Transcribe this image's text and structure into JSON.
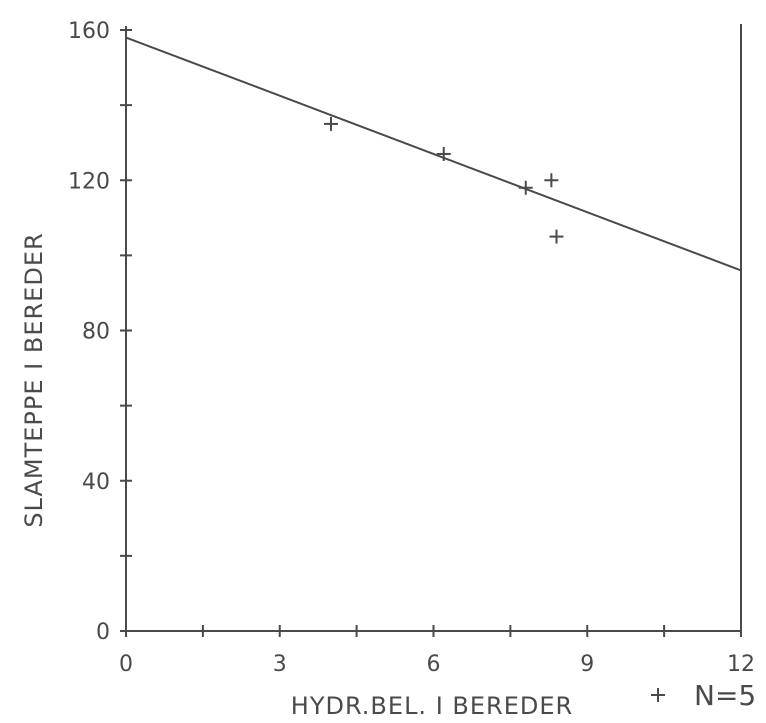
{
  "chart_data": {
    "type": "scatter",
    "xlabel": "HYDR.BEL. I BEREDER",
    "ylabel": "SLAMTEPPE I BEREDER",
    "xlim": [
      0,
      12
    ],
    "ylim": [
      0,
      160
    ],
    "x_ticks": [
      0,
      3,
      6,
      9,
      12
    ],
    "y_ticks": [
      0,
      40,
      80,
      120,
      160
    ],
    "x_tick_labels": [
      "0",
      "3",
      "6",
      "9",
      "12"
    ],
    "y_tick_labels": [
      "0",
      "40",
      "80",
      "120",
      "160"
    ],
    "x_minor_step": 1.5,
    "y_minor_step": 20,
    "grid": false,
    "legend_position": "bottom-right",
    "legend": {
      "marker": "+",
      "text": "N=5"
    },
    "points": [
      {
        "x": 4.0,
        "y": 135
      },
      {
        "x": 6.2,
        "y": 127
      },
      {
        "x": 7.8,
        "y": 118
      },
      {
        "x": 8.3,
        "y": 120
      },
      {
        "x": 8.4,
        "y": 105
      }
    ],
    "regression_line": {
      "x": [
        0,
        12
      ],
      "y": [
        158,
        96
      ]
    },
    "colors": {
      "ink": "#4a4a4a"
    }
  }
}
